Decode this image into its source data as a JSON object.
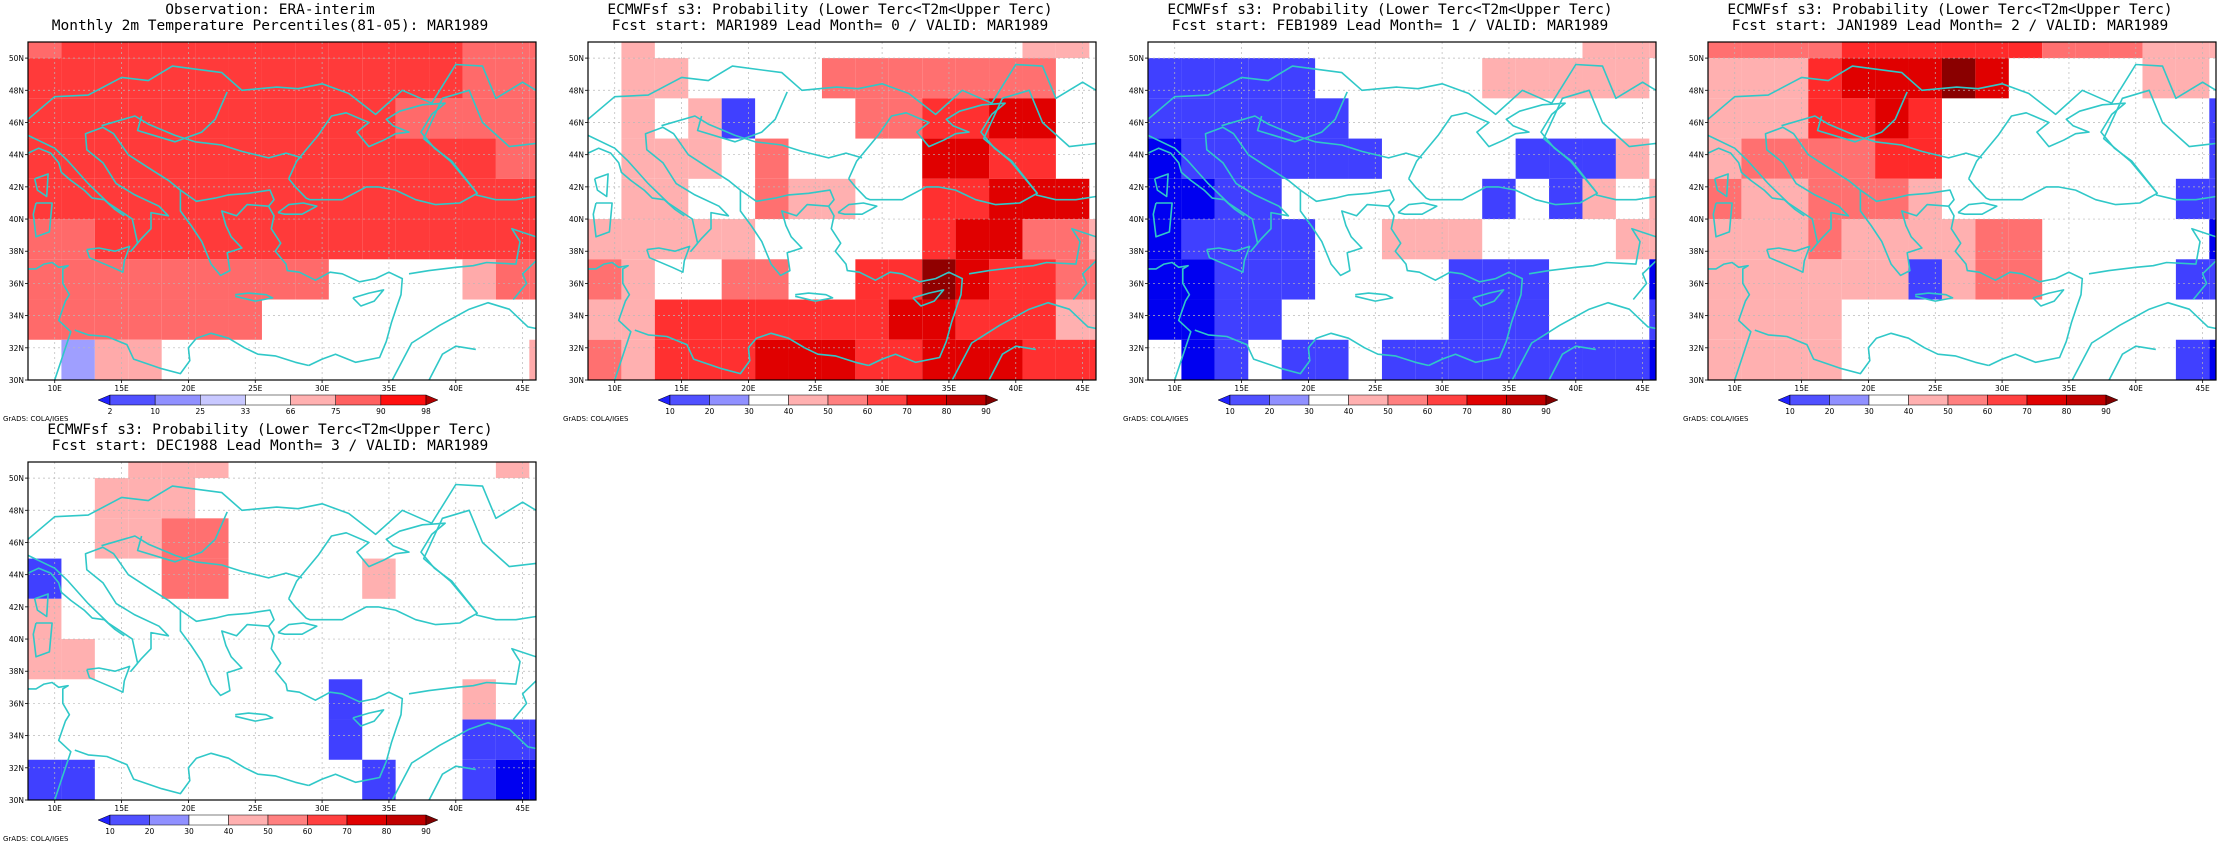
{
  "page": {
    "credit": "GrADS: COLA/IGES"
  },
  "map": {
    "lon_min": 8,
    "lon_max": 46,
    "lat_min": 30,
    "lat_max": 51,
    "lon_ticks": [
      10,
      15,
      20,
      25,
      30,
      35,
      40,
      45
    ],
    "lon_labels": [
      "10E",
      "15E",
      "20E",
      "25E",
      "30E",
      "35E",
      "40E",
      "45E"
    ],
    "lat_ticks": [
      30,
      32,
      34,
      36,
      38,
      40,
      42,
      44,
      46,
      48,
      50
    ],
    "lat_labels": [
      "30N",
      "32N",
      "34N",
      "36N",
      "38N",
      "40N",
      "42N",
      "44N",
      "46N",
      "48N",
      "50N"
    ],
    "cell_deg": 2.5,
    "coast_color": "#30c8c8",
    "grid_color": "#b8b8b8"
  },
  "colorbars": {
    "obs": {
      "labels": [
        "2",
        "10",
        "25",
        "33",
        "66",
        "75",
        "90",
        "98"
      ],
      "colors": [
        "#2020ff",
        "#5050ff",
        "#9090ff",
        "#c8c8ff",
        "#ffffff",
        "#ffb0b0",
        "#ff6060",
        "#ff1010",
        "#b00000"
      ]
    },
    "prob": {
      "labels": [
        "10",
        "20",
        "30",
        "40",
        "50",
        "60",
        "70",
        "80",
        "90"
      ],
      "colors": [
        "#2020ff",
        "#5050ff",
        "#9090ff",
        "#ffffff",
        "#ffb0b0",
        "#ff8080",
        "#ff4040",
        "#e00000",
        "#c00000",
        "#800000"
      ]
    }
  },
  "panels": [
    {
      "id": "obs",
      "title1": "Observation: ERA-interim",
      "title2": "Monthly 2m Temperature Percentiles(81-05): MAR1989",
      "colorbar": "obs",
      "palette": {
        "0": "#ffffff",
        "1": "#ffaaaa",
        "2": "#ff6a6a",
        "3": "#ff3a3a",
        "4": "#e01010",
        "5": "#9f9fff"
      },
      "grid": [
        "3333333333333331",
        "3332233333333322",
        "2333333333333222",
        "3333333333333222",
        "3333333333322222",
        "3333333333333322",
        "3333333333333333",
        "2233333333333333",
        "2222222220000122",
        "2222222000000000",
        "0511000000000001"
      ]
    },
    {
      "id": "f0",
      "title1": "ECMWFsf s3: Probability (Lower Terc<T2m<Upper Terc)",
      "title2": "Fcst start: MAR1989   Lead Month= 0 / VALID: MAR1989",
      "colorbar": "prob",
      "palette": {
        "0": "#ffffff",
        "1": "#ffb0b0",
        "2": "#ff7070",
        "3": "#ff3030",
        "4": "#e00000",
        "5": "#900000",
        "6": "#4040ff",
        "7": "#0000f0"
      },
      "grid": [
        "0000000666000011",
        "6000000666000111",
        "0100000000000110",
        "0110000222222200",
        "0101600022334400",
        "0111020000443300",
        "0110021100334440",
        "1111100000344221",
        "2100220033543322",
        "1133333334433311",
        "2133344433444333"
      ]
    },
    {
      "id": "f1",
      "title1": "ECMWFsf s3: Probability (Lower Terc<T2m<Upper Terc)",
      "title2": "Fcst start: FEB1989   Lead Month= 1 / VALID: MAR1989",
      "colorbar": "prob",
      "palette": {
        "0": "#ffffff",
        "1": "#ffb0b0",
        "2": "#ff6060",
        "3": "#ff3030",
        "4": "#4040ff",
        "5": "#0000f0"
      },
      "grid": [
        "0045440555444440",
        "0040040404004111",
        "0000000000000111",
        "4444400000111110",
        "4444440000000000",
        "5444444000044410",
        "5544000000404101",
        "5444400111000011",
        "5544400004440005",
        "5544000004440004",
        "0540440444444445"
      ]
    },
    {
      "id": "f2",
      "title1": "ECMWFsf s3: Probability (Lower Terc<T2m<Upper Terc)",
      "title2": "Fcst start: JAN1989   Lead Month= 2 / VALID: MAR1989",
      "colorbar": "prob",
      "palette": {
        "0": "#ffffff",
        "1": "#ffb0b0",
        "2": "#ff7070",
        "3": "#ff2a2a",
        "4": "#e00000",
        "5": "#8a0000",
        "6": "#4040ff",
        "7": "#0000f0"
      },
      "grid": [
        "2222233444442222",
        "2221223333322222",
        "2222333333222111",
        "1113444540000110",
        "1113343000000006",
        "1222233000000006",
        "2112221000000066",
        "1112111122000007",
        "1111116122000066",
        "1111000000000000",
        "1111000000000067"
      ]
    },
    {
      "id": "f3",
      "title1": "ECMWFsf s3: Probability (Lower Terc<T2m<Upper Terc)",
      "title2": "Fcst start: DEC1988   Lead Month= 3 / VALID: MAR1989",
      "colorbar": "prob",
      "palette": {
        "0": "#ffffff",
        "1": "#ffb0b0",
        "2": "#ff7070",
        "3": "#4040ff",
        "4": "#0000f0"
      },
      "grid": [
        "0030000011200000",
        "0000001110000000",
        "0001110000000010",
        "0011100000000000",
        "0011220000000000",
        "3000220000100000",
        "1000000000000000",
        "1100000000000000",
        "0000000003000100",
        "0000000003000333",
        "3300000000300344"
      ]
    }
  ]
}
